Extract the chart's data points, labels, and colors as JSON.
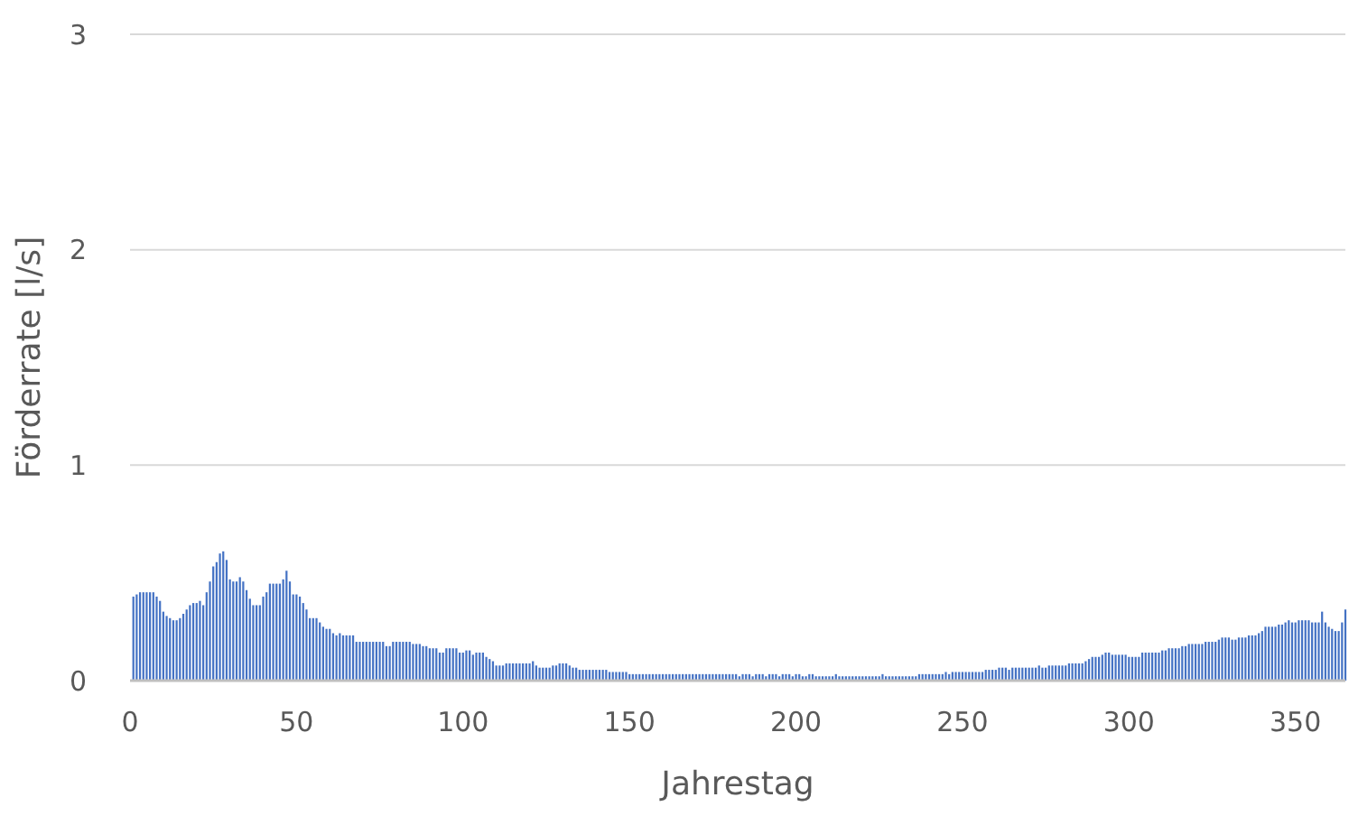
{
  "chart_data": {
    "type": "bar",
    "xlabel": "Jahrestag",
    "ylabel": "Förderrate [l/s]",
    "x": [
      1,
      2,
      3,
      4,
      5,
      6,
      7,
      8,
      9,
      10,
      11,
      12,
      13,
      14,
      15,
      16,
      17,
      18,
      19,
      20,
      21,
      22,
      23,
      24,
      25,
      26,
      27,
      28,
      29,
      30,
      31,
      32,
      33,
      34,
      35,
      36,
      37,
      38,
      39,
      40,
      41,
      42,
      43,
      44,
      45,
      46,
      47,
      48,
      49,
      50,
      51,
      52,
      53,
      54,
      55,
      56,
      57,
      58,
      59,
      60,
      61,
      62,
      63,
      64,
      65,
      66,
      67,
      68,
      69,
      70,
      71,
      72,
      73,
      74,
      75,
      76,
      77,
      78,
      79,
      80,
      81,
      82,
      83,
      84,
      85,
      86,
      87,
      88,
      89,
      90,
      91,
      92,
      93,
      94,
      95,
      96,
      97,
      98,
      99,
      100,
      101,
      102,
      103,
      104,
      105,
      106,
      107,
      108,
      109,
      110,
      111,
      112,
      113,
      114,
      115,
      116,
      117,
      118,
      119,
      120,
      121,
      122,
      123,
      124,
      125,
      126,
      127,
      128,
      129,
      130,
      131,
      132,
      133,
      134,
      135,
      136,
      137,
      138,
      139,
      140,
      141,
      142,
      143,
      144,
      145,
      146,
      147,
      148,
      149,
      150,
      151,
      152,
      153,
      154,
      155,
      156,
      157,
      158,
      159,
      160,
      161,
      162,
      163,
      164,
      165,
      166,
      167,
      168,
      169,
      170,
      171,
      172,
      173,
      174,
      175,
      176,
      177,
      178,
      179,
      180,
      181,
      182,
      183,
      184,
      185,
      186,
      187,
      188,
      189,
      190,
      191,
      192,
      193,
      194,
      195,
      196,
      197,
      198,
      199,
      200,
      201,
      202,
      203,
      204,
      205,
      206,
      207,
      208,
      209,
      210,
      211,
      212,
      213,
      214,
      215,
      216,
      217,
      218,
      219,
      220,
      221,
      222,
      223,
      224,
      225,
      226,
      227,
      228,
      229,
      230,
      231,
      232,
      233,
      234,
      235,
      236,
      237,
      238,
      239,
      240,
      241,
      242,
      243,
      244,
      245,
      246,
      247,
      248,
      249,
      250,
      251,
      252,
      253,
      254,
      255,
      256,
      257,
      258,
      259,
      260,
      261,
      262,
      263,
      264,
      265,
      266,
      267,
      268,
      269,
      270,
      271,
      272,
      273,
      274,
      275,
      276,
      277,
      278,
      279,
      280,
      281,
      282,
      283,
      284,
      285,
      286,
      287,
      288,
      289,
      290,
      291,
      292,
      293,
      294,
      295,
      296,
      297,
      298,
      299,
      300,
      301,
      302,
      303,
      304,
      305,
      306,
      307,
      308,
      309,
      310,
      311,
      312,
      313,
      314,
      315,
      316,
      317,
      318,
      319,
      320,
      321,
      322,
      323,
      324,
      325,
      326,
      327,
      328,
      329,
      330,
      331,
      332,
      333,
      334,
      335,
      336,
      337,
      338,
      339,
      340,
      341,
      342,
      343,
      344,
      345,
      346,
      347,
      348,
      349,
      350,
      351,
      352,
      353,
      354,
      355,
      356,
      357,
      358,
      359,
      360,
      361,
      362,
      363,
      364,
      365
    ],
    "values": [
      0.39,
      0.4,
      0.41,
      0.41,
      0.41,
      0.41,
      0.41,
      0.39,
      0.37,
      0.32,
      0.3,
      0.29,
      0.28,
      0.28,
      0.29,
      0.31,
      0.33,
      0.35,
      0.36,
      0.36,
      0.37,
      0.35,
      0.41,
      0.46,
      0.53,
      0.55,
      0.59,
      0.6,
      0.56,
      0.47,
      0.46,
      0.46,
      0.48,
      0.46,
      0.42,
      0.38,
      0.35,
      0.35,
      0.35,
      0.39,
      0.41,
      0.45,
      0.45,
      0.45,
      0.45,
      0.47,
      0.51,
      0.46,
      0.4,
      0.4,
      0.39,
      0.36,
      0.33,
      0.29,
      0.29,
      0.29,
      0.27,
      0.25,
      0.24,
      0.24,
      0.22,
      0.21,
      0.22,
      0.21,
      0.21,
      0.21,
      0.21,
      0.18,
      0.18,
      0.18,
      0.18,
      0.18,
      0.18,
      0.18,
      0.18,
      0.18,
      0.16,
      0.16,
      0.18,
      0.18,
      0.18,
      0.18,
      0.18,
      0.18,
      0.17,
      0.17,
      0.17,
      0.16,
      0.16,
      0.15,
      0.15,
      0.15,
      0.13,
      0.13,
      0.15,
      0.15,
      0.15,
      0.15,
      0.13,
      0.13,
      0.14,
      0.14,
      0.12,
      0.13,
      0.13,
      0.13,
      0.11,
      0.1,
      0.09,
      0.07,
      0.07,
      0.07,
      0.08,
      0.08,
      0.08,
      0.08,
      0.08,
      0.08,
      0.08,
      0.08,
      0.09,
      0.07,
      0.06,
      0.06,
      0.06,
      0.06,
      0.07,
      0.07,
      0.08,
      0.08,
      0.08,
      0.07,
      0.06,
      0.06,
      0.05,
      0.05,
      0.05,
      0.05,
      0.05,
      0.05,
      0.05,
      0.05,
      0.05,
      0.04,
      0.04,
      0.04,
      0.04,
      0.04,
      0.04,
      0.03,
      0.03,
      0.03,
      0.03,
      0.03,
      0.03,
      0.03,
      0.03,
      0.03,
      0.03,
      0.03,
      0.03,
      0.03,
      0.03,
      0.03,
      0.03,
      0.03,
      0.03,
      0.03,
      0.03,
      0.03,
      0.03,
      0.03,
      0.03,
      0.03,
      0.03,
      0.03,
      0.03,
      0.03,
      0.03,
      0.03,
      0.03,
      0.03,
      0.02,
      0.03,
      0.03,
      0.03,
      0.02,
      0.03,
      0.03,
      0.03,
      0.02,
      0.03,
      0.03,
      0.03,
      0.02,
      0.03,
      0.03,
      0.03,
      0.02,
      0.03,
      0.03,
      0.02,
      0.02,
      0.03,
      0.03,
      0.02,
      0.02,
      0.02,
      0.02,
      0.02,
      0.02,
      0.03,
      0.02,
      0.02,
      0.02,
      0.02,
      0.02,
      0.02,
      0.02,
      0.02,
      0.02,
      0.02,
      0.02,
      0.02,
      0.02,
      0.03,
      0.02,
      0.02,
      0.02,
      0.02,
      0.02,
      0.02,
      0.02,
      0.02,
      0.02,
      0.02,
      0.03,
      0.03,
      0.03,
      0.03,
      0.03,
      0.03,
      0.03,
      0.03,
      0.04,
      0.03,
      0.04,
      0.04,
      0.04,
      0.04,
      0.04,
      0.04,
      0.04,
      0.04,
      0.04,
      0.04,
      0.05,
      0.05,
      0.05,
      0.05,
      0.06,
      0.06,
      0.06,
      0.05,
      0.06,
      0.06,
      0.06,
      0.06,
      0.06,
      0.06,
      0.06,
      0.06,
      0.07,
      0.06,
      0.06,
      0.07,
      0.07,
      0.07,
      0.07,
      0.07,
      0.07,
      0.08,
      0.08,
      0.08,
      0.08,
      0.08,
      0.09,
      0.1,
      0.11,
      0.11,
      0.11,
      0.12,
      0.13,
      0.13,
      0.12,
      0.12,
      0.12,
      0.12,
      0.12,
      0.11,
      0.11,
      0.11,
      0.11,
      0.13,
      0.13,
      0.13,
      0.13,
      0.13,
      0.13,
      0.14,
      0.14,
      0.15,
      0.15,
      0.15,
      0.15,
      0.16,
      0.16,
      0.17,
      0.17,
      0.17,
      0.17,
      0.17,
      0.18,
      0.18,
      0.18,
      0.18,
      0.19,
      0.2,
      0.2,
      0.2,
      0.19,
      0.19,
      0.2,
      0.2,
      0.2,
      0.21,
      0.21,
      0.21,
      0.22,
      0.23,
      0.25,
      0.25,
      0.25,
      0.25,
      0.26,
      0.26,
      0.27,
      0.28,
      0.27,
      0.27,
      0.28,
      0.28,
      0.28,
      0.28,
      0.27,
      0.27,
      0.27,
      0.32,
      0.27,
      0.25,
      0.24,
      0.23,
      0.23,
      0.27,
      0.33
    ],
    "color": "#4472c4",
    "xlim": [
      0,
      365
    ],
    "xticks": [
      0,
      50,
      100,
      150,
      200,
      250,
      300,
      350
    ],
    "ylim": [
      0,
      3
    ],
    "yticks": [
      0,
      1,
      2,
      3
    ],
    "grid": "y"
  }
}
